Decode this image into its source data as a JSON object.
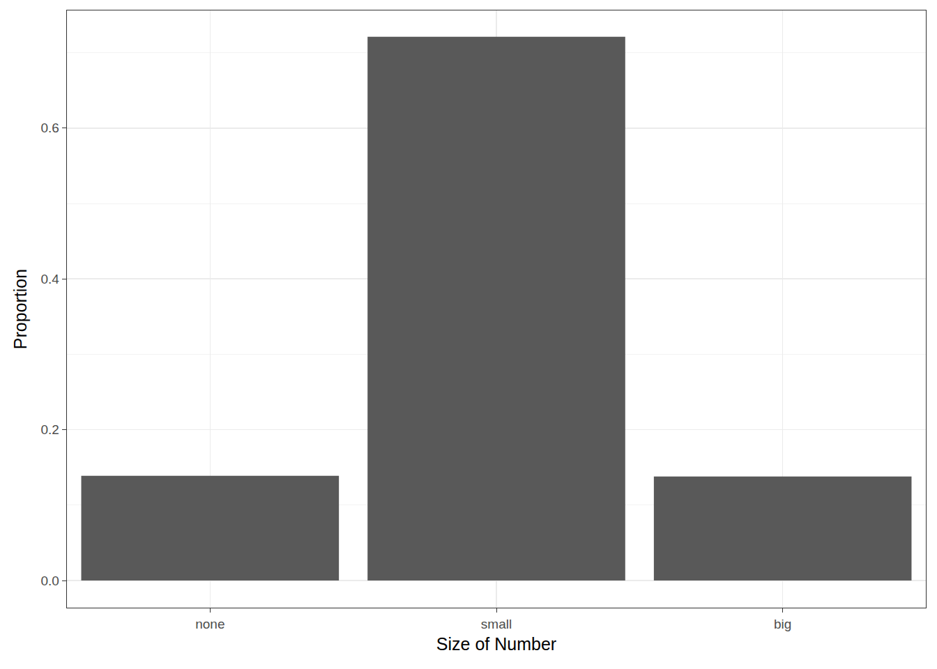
{
  "chart_data": {
    "type": "bar",
    "x_label": "Size of Number",
    "y_label": "Proportion",
    "categories": [
      "none",
      "small",
      "big"
    ],
    "values": [
      0.139,
      0.721,
      0.138
    ],
    "color": "#595959",
    "ylim": [
      -0.036,
      0.756
    ],
    "yticks": [
      {
        "value": 0,
        "label": "0.0"
      },
      0.2,
      0.4,
      0.6
    ],
    "grid": true
  }
}
